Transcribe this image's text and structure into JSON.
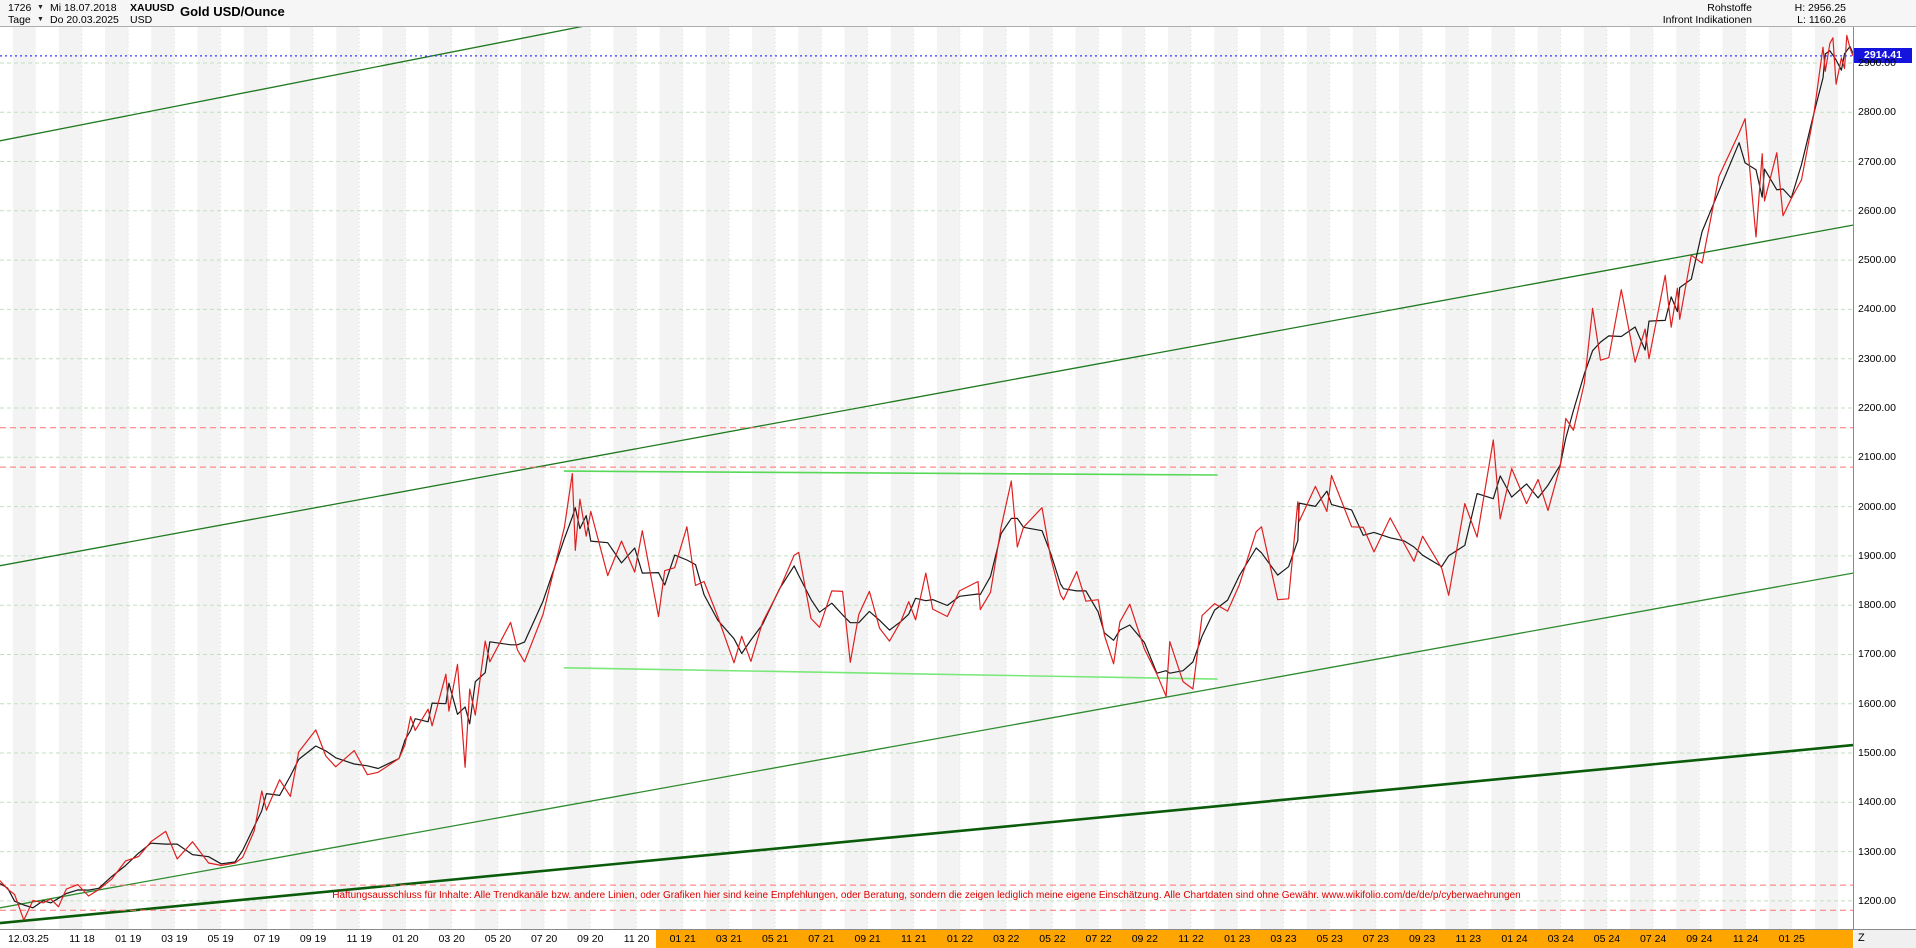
{
  "icons": {
    "dropdown_arrow": "▼"
  },
  "header": {
    "title": "Gold USD/Ounce",
    "left": {
      "instrument_id": "1726",
      "date_from": "Mi 18.07.2018",
      "symbol": "XAUUSD",
      "timeframe": "Tage",
      "date_to": "Do 20.03.2025",
      "currency": "USD"
    },
    "right": {
      "category": "Rohstoffe",
      "high": "H: 2956.25",
      "provider": "Infront Indikationen",
      "low": "L: 1160.26"
    }
  },
  "price_axis": {
    "labels": [
      "2900.00",
      "2800.00",
      "2700.00",
      "2600.00",
      "2500.00",
      "2400.00",
      "2300.00",
      "2200.00",
      "2100.00",
      "2000.00",
      "1900.00",
      "1800.00",
      "1700.00",
      "1600.00",
      "1500.00",
      "1400.00",
      "1300.00",
      "1200.00"
    ],
    "current_price": "2914.41",
    "badge_color": "#1414dd"
  },
  "time_axis": {
    "left_label": "12.03.25",
    "z_label": "Z",
    "highlight_start_t": 28.4,
    "highlight_color": "#ffa500",
    "ticks": [
      {
        "label": "11 18",
        "t": 3.55
      },
      {
        "label": "01 19",
        "t": 5.55
      },
      {
        "label": "03 19",
        "t": 7.55
      },
      {
        "label": "05 19",
        "t": 9.55
      },
      {
        "label": "07 19",
        "t": 11.55
      },
      {
        "label": "09 19",
        "t": 13.55
      },
      {
        "label": "11 19",
        "t": 15.55
      },
      {
        "label": "01 20",
        "t": 17.55
      },
      {
        "label": "03 20",
        "t": 19.55
      },
      {
        "label": "05 20",
        "t": 21.55
      },
      {
        "label": "07 20",
        "t": 23.55
      },
      {
        "label": "09 20",
        "t": 25.55
      },
      {
        "label": "11 20",
        "t": 27.55
      },
      {
        "label": "01 21",
        "t": 29.55
      },
      {
        "label": "03 21",
        "t": 31.55
      },
      {
        "label": "05 21",
        "t": 33.55
      },
      {
        "label": "07 21",
        "t": 35.55
      },
      {
        "label": "09 21",
        "t": 37.55
      },
      {
        "label": "11 21",
        "t": 39.55
      },
      {
        "label": "01 22",
        "t": 41.55
      },
      {
        "label": "03 22",
        "t": 43.55
      },
      {
        "label": "05 22",
        "t": 45.55
      },
      {
        "label": "07 22",
        "t": 47.55
      },
      {
        "label": "09 22",
        "t": 49.55
      },
      {
        "label": "11 22",
        "t": 51.55
      },
      {
        "label": "01 23",
        "t": 53.55
      },
      {
        "label": "03 23",
        "t": 55.55
      },
      {
        "label": "05 23",
        "t": 57.55
      },
      {
        "label": "07 23",
        "t": 59.55
      },
      {
        "label": "09 23",
        "t": 61.55
      },
      {
        "label": "11 23",
        "t": 63.55
      },
      {
        "label": "01 24",
        "t": 65.55
      },
      {
        "label": "03 24",
        "t": 67.55
      },
      {
        "label": "05 24",
        "t": 69.55
      },
      {
        "label": "07 24",
        "t": 71.55
      },
      {
        "label": "09 24",
        "t": 73.55
      },
      {
        "label": "11 24",
        "t": 75.55
      },
      {
        "label": "01 25",
        "t": 77.55
      }
    ]
  },
  "disclaimer": "Haftungsausschluss für Inhalte: Alle Trendkanäle bzw. andere Linien, oder Grafiken hier sind keine Empfehlungen, oder Beratung, sondern die zeigen lediglich meine eigene Einschätzung. Alle Chartdaten sind ohne Gewähr. www.wikifolio.com/de/de/p/cyberwaehrungen",
  "chart_data": {
    "type": "line",
    "title": "Gold USD/Ounce",
    "symbol": "XAUUSD",
    "x_unit": "months since 2018-07-15",
    "x_range": [
      0,
      80.2
    ],
    "y_range_visible": [
      1143,
      2975
    ],
    "period_high": 2956.25,
    "period_low": 1160.26,
    "last": 2914.41,
    "current_price_line_color": "#3a3aff",
    "red_dashed_levels": [
      2160,
      2080,
      1232,
      1181
    ],
    "support_resistance": [
      {
        "name": "resistance-line",
        "t1": 24.4,
        "p1": 2072,
        "t2": 52.7,
        "p2": 2064,
        "color": "#57d957",
        "width": 1.6
      },
      {
        "name": "support-line",
        "t1": 24.4,
        "p1": 1673,
        "t2": 52.7,
        "p2": 1650,
        "color": "#79e879",
        "width": 1.6
      }
    ],
    "trendlines": [
      {
        "name": "upper-channel-line",
        "t1": 0,
        "p1": 2742,
        "t2": 25.3,
        "p2": 2975,
        "color": "#1f7a1f",
        "width": 1.3
      },
      {
        "name": "mid-channel-line",
        "t1": 0,
        "p1": 1880,
        "t2": 80.2,
        "p2": 2571,
        "color": "#1f7a1f",
        "width": 1.3
      },
      {
        "name": "lower-channel-line",
        "t1": 0,
        "p1": 1186,
        "t2": 80.2,
        "p2": 1865,
        "color": "#2e8b2e",
        "width": 1.3
      },
      {
        "name": "base-trendline",
        "t1": 0,
        "p1": 1155,
        "t2": 80.2,
        "p2": 1516,
        "color": "#0a5c0a",
        "width": 2.6
      }
    ],
    "series": [
      {
        "name": "XAUUSD Gold USD/Ounce",
        "color": "#e02020",
        "points": [
          [
            0,
            1241
          ],
          [
            0.33,
            1224
          ],
          [
            0.63,
            1213
          ],
          [
            1.03,
            1161
          ],
          [
            1.43,
            1201
          ],
          [
            1.87,
            1196
          ],
          [
            2.2,
            1204
          ],
          [
            2.53,
            1188
          ],
          [
            2.87,
            1224
          ],
          [
            3.37,
            1233
          ],
          [
            3.83,
            1210
          ],
          [
            4.27,
            1223
          ],
          [
            4.83,
            1244
          ],
          [
            5.43,
            1281
          ],
          [
            6,
            1290
          ],
          [
            6.53,
            1320
          ],
          [
            7.17,
            1341
          ],
          [
            7.67,
            1285
          ],
          [
            8.33,
            1320
          ],
          [
            9.03,
            1277
          ],
          [
            9.57,
            1272
          ],
          [
            10.17,
            1277
          ],
          [
            10.5,
            1288
          ],
          [
            11,
            1342
          ],
          [
            11.33,
            1423
          ],
          [
            11.53,
            1384
          ],
          [
            12.1,
            1446
          ],
          [
            12.57,
            1412
          ],
          [
            12.93,
            1502
          ],
          [
            13.67,
            1547
          ],
          [
            14.1,
            1494
          ],
          [
            14.53,
            1472
          ],
          [
            15.33,
            1505
          ],
          [
            15.9,
            1456
          ],
          [
            16.37,
            1461
          ],
          [
            17.27,
            1489
          ],
          [
            17.53,
            1517
          ],
          [
            17.77,
            1574
          ],
          [
            17.97,
            1546
          ],
          [
            18.53,
            1589
          ],
          [
            18.7,
            1555
          ],
          [
            19.3,
            1660
          ],
          [
            19.43,
            1585
          ],
          [
            19.8,
            1680
          ],
          [
            20.13,
            1471
          ],
          [
            20.33,
            1630
          ],
          [
            20.57,
            1577
          ],
          [
            21,
            1727
          ],
          [
            21.2,
            1685
          ],
          [
            22.1,
            1765
          ],
          [
            22.4,
            1709
          ],
          [
            22.7,
            1685
          ],
          [
            23.5,
            1781
          ],
          [
            24.43,
            1958
          ],
          [
            24.77,
            2067
          ],
          [
            24.9,
            1911
          ],
          [
            25.1,
            2015
          ],
          [
            25.37,
            1940
          ],
          [
            25.57,
            1990
          ],
          [
            26.3,
            1860
          ],
          [
            26.9,
            1930
          ],
          [
            27.47,
            1867
          ],
          [
            27.8,
            1951
          ],
          [
            28.5,
            1777
          ],
          [
            28.77,
            1870
          ],
          [
            29.2,
            1876
          ],
          [
            29.73,
            1959
          ],
          [
            30.1,
            1840
          ],
          [
            30.47,
            1848
          ],
          [
            31.07,
            1776
          ],
          [
            31.77,
            1683
          ],
          [
            32.1,
            1737
          ],
          [
            32.5,
            1686
          ],
          [
            33,
            1765
          ],
          [
            33.73,
            1831
          ],
          [
            34.37,
            1901
          ],
          [
            34.57,
            1907
          ],
          [
            35.1,
            1773
          ],
          [
            35.47,
            1755
          ],
          [
            36,
            1829
          ],
          [
            36.47,
            1828
          ],
          [
            36.8,
            1684
          ],
          [
            37.17,
            1781
          ],
          [
            37.63,
            1828
          ],
          [
            38.07,
            1753
          ],
          [
            38.5,
            1727
          ],
          [
            39,
            1768
          ],
          [
            39.33,
            1807
          ],
          [
            39.63,
            1770
          ],
          [
            40.07,
            1865
          ],
          [
            40.37,
            1792
          ],
          [
            41,
            1777
          ],
          [
            41.53,
            1829
          ],
          [
            42.33,
            1848
          ],
          [
            42.43,
            1791
          ],
          [
            42.87,
            1826
          ],
          [
            43.33,
            1958
          ],
          [
            43.77,
            2052
          ],
          [
            44.03,
            1918
          ],
          [
            44.3,
            1958
          ],
          [
            45.1,
            1998
          ],
          [
            45.47,
            1897
          ],
          [
            45.9,
            1821
          ],
          [
            46.03,
            1811
          ],
          [
            46.6,
            1868
          ],
          [
            47,
            1808
          ],
          [
            47.53,
            1811
          ],
          [
            47.8,
            1739
          ],
          [
            48.2,
            1681
          ],
          [
            48.47,
            1766
          ],
          [
            48.9,
            1802
          ],
          [
            49.53,
            1711
          ],
          [
            50.07,
            1660
          ],
          [
            50.47,
            1615
          ],
          [
            50.63,
            1726
          ],
          [
            51.2,
            1645
          ],
          [
            51.63,
            1630
          ],
          [
            52.03,
            1779
          ],
          [
            52.57,
            1803
          ],
          [
            53.13,
            1788
          ],
          [
            53.63,
            1840
          ],
          [
            54.37,
            1949
          ],
          [
            54.6,
            1959
          ],
          [
            55.3,
            1811
          ],
          [
            55.77,
            1813
          ],
          [
            56.17,
            2010
          ],
          [
            56.23,
            1970
          ],
          [
            56.93,
            2041
          ],
          [
            57.43,
            1990
          ],
          [
            57.63,
            2063
          ],
          [
            58.5,
            1959
          ],
          [
            59,
            1958
          ],
          [
            59.47,
            1908
          ],
          [
            60.17,
            1977
          ],
          [
            60.77,
            1925
          ],
          [
            61.2,
            1889
          ],
          [
            61.57,
            1940
          ],
          [
            62.4,
            1875
          ],
          [
            62.7,
            1820
          ],
          [
            63.4,
            2006
          ],
          [
            63.93,
            1938
          ],
          [
            64.63,
            2135
          ],
          [
            64.93,
            1975
          ],
          [
            65.43,
            2077
          ],
          [
            66.07,
            2006
          ],
          [
            66.57,
            2055
          ],
          [
            67,
            1992
          ],
          [
            67.53,
            2083
          ],
          [
            67.77,
            2179
          ],
          [
            68.1,
            2155
          ],
          [
            68.57,
            2250
          ],
          [
            68.93,
            2402
          ],
          [
            69.27,
            2297
          ],
          [
            69.63,
            2302
          ],
          [
            70.17,
            2440
          ],
          [
            70.77,
            2293
          ],
          [
            71.2,
            2360
          ],
          [
            71.37,
            2300
          ],
          [
            72.07,
            2469
          ],
          [
            72.33,
            2364
          ],
          [
            72.6,
            2443
          ],
          [
            72.7,
            2380
          ],
          [
            73.2,
            2510
          ],
          [
            73.67,
            2494
          ],
          [
            74.4,
            2670
          ],
          [
            75.27,
            2758
          ],
          [
            75.53,
            2787
          ],
          [
            76,
            2547
          ],
          [
            76.27,
            2716
          ],
          [
            76.37,
            2620
          ],
          [
            76.9,
            2718
          ],
          [
            77.17,
            2590
          ],
          [
            77.53,
            2625
          ],
          [
            77.97,
            2663
          ],
          [
            78.5,
            2794
          ],
          [
            78.9,
            2932
          ],
          [
            79,
            2883
          ],
          [
            79.2,
            2940
          ],
          [
            79.33,
            2951
          ],
          [
            79.47,
            2857
          ],
          [
            79.7,
            2910
          ],
          [
            79.83,
            2889
          ],
          [
            79.93,
            2956
          ],
          [
            80.07,
            2930
          ],
          [
            80.2,
            2914.41
          ]
        ]
      }
    ]
  }
}
